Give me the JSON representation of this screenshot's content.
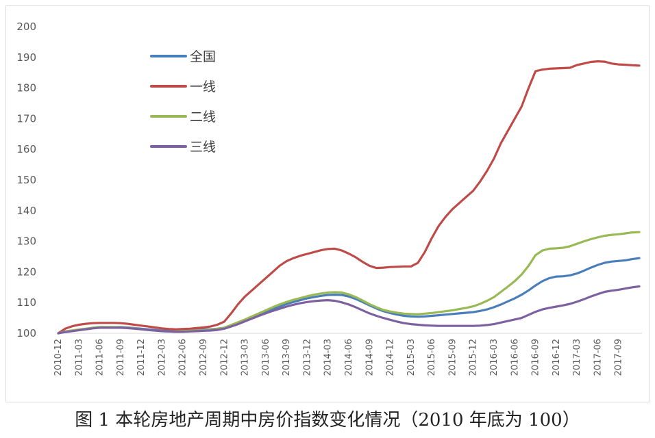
{
  "caption": "图 1 本轮房地产周期中房价指数变化情况（2010 年底为 100）",
  "chart_data": {
    "type": "line",
    "title": "",
    "xlabel": "",
    "ylabel": "",
    "ylim": [
      100,
      200
    ],
    "yticks": [
      100,
      110,
      120,
      130,
      140,
      150,
      160,
      170,
      180,
      190,
      200
    ],
    "grid": false,
    "legend_position": "top-left",
    "x": [
      "2010-12",
      "2011-01",
      "2011-02",
      "2011-03",
      "2011-04",
      "2011-05",
      "2011-06",
      "2011-07",
      "2011-08",
      "2011-09",
      "2011-10",
      "2011-11",
      "2011-12",
      "2012-01",
      "2012-02",
      "2012-03",
      "2012-04",
      "2012-05",
      "2012-06",
      "2012-07",
      "2012-08",
      "2012-09",
      "2012-10",
      "2012-11",
      "2012-12",
      "2013-01",
      "2013-02",
      "2013-03",
      "2013-04",
      "2013-05",
      "2013-06",
      "2013-07",
      "2013-08",
      "2013-09",
      "2013-10",
      "2013-11",
      "2013-12",
      "2014-01",
      "2014-02",
      "2014-03",
      "2014-04",
      "2014-05",
      "2014-06",
      "2014-07",
      "2014-08",
      "2014-09",
      "2014-10",
      "2014-11",
      "2014-12",
      "2015-01",
      "2015-02",
      "2015-03",
      "2015-04",
      "2015-05",
      "2015-06",
      "2015-07",
      "2015-08",
      "2015-09",
      "2015-10",
      "2015-11",
      "2015-12",
      "2016-01",
      "2016-02",
      "2016-03",
      "2016-04",
      "2016-05",
      "2016-06",
      "2016-07",
      "2016-08",
      "2016-09",
      "2016-10",
      "2016-11",
      "2016-12",
      "2017-01",
      "2017-02",
      "2017-03",
      "2017-04",
      "2017-05",
      "2017-06",
      "2017-07",
      "2017-08",
      "2017-09",
      "2017-10",
      "2017-11",
      "2017-12"
    ],
    "xticks": [
      "2010-12",
      "2011-03",
      "2011-06",
      "2011-09",
      "2011-12",
      "2012-03",
      "2012-06",
      "2012-09",
      "2012-12",
      "2013-03",
      "2013-06",
      "2013-09",
      "2013-12",
      "2014-03",
      "2014-06",
      "2014-09",
      "2014-12",
      "2015-03",
      "2015-06",
      "2015-09",
      "2015-12",
      "2016-03",
      "2016-06",
      "2016-09",
      "2016-12",
      "2017-03",
      "2017-06",
      "2017-09"
    ],
    "series": [
      {
        "name": "全国",
        "color": "#4a7ebb",
        "values": [
          100,
          100.6,
          100.9,
          101.2,
          101.5,
          101.8,
          102.0,
          102.0,
          102.0,
          102.0,
          101.9,
          101.7,
          101.5,
          101.3,
          101.1,
          100.9,
          100.8,
          100.8,
          100.9,
          101.0,
          101.1,
          101.2,
          101.3,
          101.5,
          101.8,
          102.6,
          103.4,
          104.3,
          105.2,
          106.1,
          107.0,
          107.9,
          108.7,
          109.5,
          110.2,
          110.8,
          111.4,
          111.8,
          112.2,
          112.5,
          112.6,
          112.5,
          112.0,
          111.2,
          110.2,
          109.1,
          108.1,
          107.2,
          106.6,
          106.1,
          105.7,
          105.5,
          105.4,
          105.5,
          105.7,
          105.9,
          106.1,
          106.3,
          106.5,
          106.7,
          106.9,
          107.3,
          107.8,
          108.5,
          109.4,
          110.4,
          111.4,
          112.6,
          114.0,
          115.6,
          117.0,
          118.0,
          118.5,
          118.6,
          118.9,
          119.5,
          120.4,
          121.4,
          122.3,
          123.0,
          123.4,
          123.6,
          123.8,
          124.2,
          124.5
        ]
      },
      {
        "name": "一线",
        "color": "#be4b48",
        "values": [
          100,
          101.5,
          102.3,
          102.8,
          103.1,
          103.3,
          103.4,
          103.4,
          103.4,
          103.3,
          103.1,
          102.8,
          102.5,
          102.2,
          101.9,
          101.6,
          101.4,
          101.3,
          101.4,
          101.5,
          101.7,
          101.9,
          102.2,
          102.8,
          103.8,
          106.5,
          109.5,
          112.0,
          114.0,
          116.0,
          118.0,
          120.0,
          122.0,
          123.5,
          124.5,
          125.3,
          125.9,
          126.5,
          127.1,
          127.5,
          127.6,
          127.0,
          126.0,
          124.8,
          123.3,
          122.0,
          121.3,
          121.4,
          121.6,
          121.7,
          121.8,
          121.8,
          123.0,
          126.5,
          131.0,
          135.0,
          138.0,
          140.5,
          142.5,
          144.5,
          146.5,
          149.5,
          153.0,
          157.0,
          162.0,
          166.0,
          170.0,
          174.0,
          180.0,
          185.5,
          186.0,
          186.3,
          186.4,
          186.5,
          186.6,
          187.5,
          188.0,
          188.5,
          188.7,
          188.6,
          188.0,
          187.7,
          187.6,
          187.4,
          187.3
        ]
      },
      {
        "name": "二线",
        "color": "#98b954",
        "values": [
          100,
          100.6,
          100.9,
          101.2,
          101.5,
          101.8,
          102.0,
          102.0,
          102.0,
          101.9,
          101.8,
          101.6,
          101.3,
          101.1,
          100.9,
          100.7,
          100.6,
          100.6,
          100.7,
          100.8,
          100.9,
          101.0,
          101.1,
          101.4,
          101.8,
          102.7,
          103.6,
          104.5,
          105.5,
          106.5,
          107.5,
          108.5,
          109.4,
          110.2,
          110.9,
          111.5,
          112.1,
          112.6,
          113.0,
          113.3,
          113.4,
          113.3,
          112.7,
          111.8,
          110.7,
          109.5,
          108.5,
          107.6,
          107.1,
          106.7,
          106.4,
          106.3,
          106.2,
          106.4,
          106.6,
          106.9,
          107.2,
          107.5,
          107.9,
          108.3,
          108.8,
          109.6,
          110.6,
          111.8,
          113.5,
          115.2,
          117.0,
          119.2,
          122.0,
          125.5,
          127.0,
          127.6,
          127.7,
          127.9,
          128.4,
          129.2,
          130.0,
          130.7,
          131.3,
          131.8,
          132.1,
          132.3,
          132.6,
          132.9,
          133.0
        ]
      },
      {
        "name": "三线",
        "color": "#7d60a0",
        "values": [
          100,
          100.4,
          100.7,
          101.0,
          101.3,
          101.6,
          101.8,
          101.8,
          101.8,
          101.8,
          101.7,
          101.5,
          101.3,
          101.1,
          100.9,
          100.7,
          100.6,
          100.5,
          100.5,
          100.6,
          100.7,
          100.8,
          100.9,
          101.1,
          101.5,
          102.2,
          103.0,
          103.9,
          104.8,
          105.7,
          106.5,
          107.3,
          108.0,
          108.7,
          109.3,
          109.8,
          110.2,
          110.5,
          110.7,
          110.8,
          110.6,
          110.1,
          109.4,
          108.5,
          107.5,
          106.5,
          105.7,
          105.0,
          104.4,
          103.8,
          103.3,
          103.0,
          102.8,
          102.6,
          102.5,
          102.4,
          102.4,
          102.4,
          102.4,
          102.4,
          102.4,
          102.5,
          102.7,
          103.0,
          103.5,
          104.0,
          104.5,
          105.0,
          106.0,
          107.0,
          107.8,
          108.3,
          108.7,
          109.1,
          109.6,
          110.3,
          111.1,
          112.0,
          112.8,
          113.5,
          113.9,
          114.2,
          114.6,
          115.0,
          115.3
        ]
      }
    ]
  }
}
